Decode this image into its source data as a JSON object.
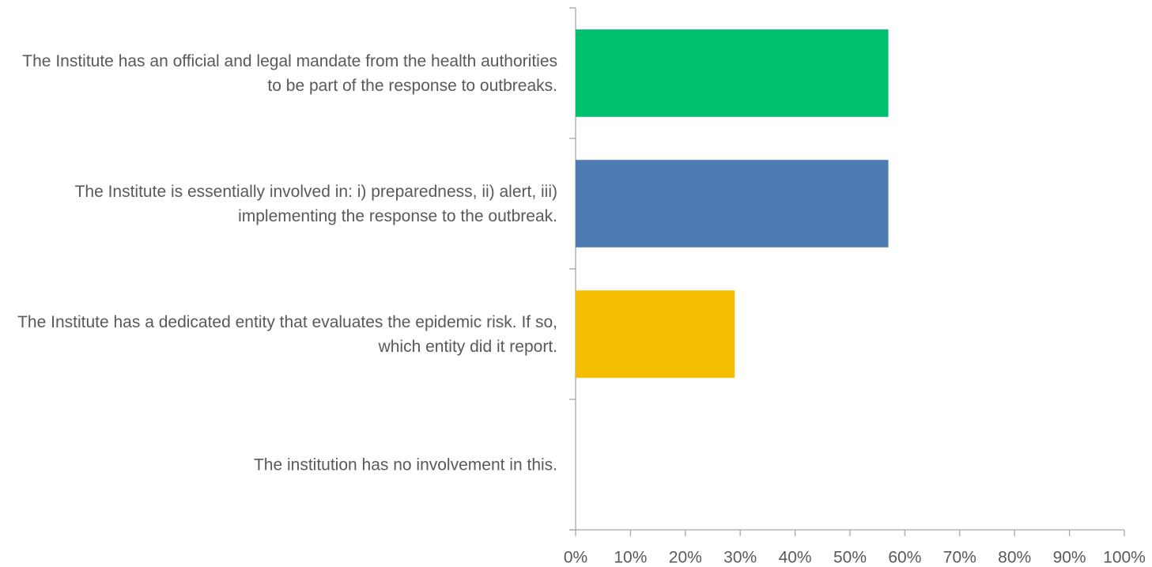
{
  "chart_data": {
    "type": "barh",
    "categories": [
      "The Institute has an official and legal mandate from the health authorities to be part of the response to outbreaks.",
      "The Institute is essentially involved in: i) preparedness, ii) alert, iii) implementing the response to the outbreak.",
      "The Institute has a dedicated entity that evaluates the epidemic risk. If so, which entity did it report.",
      "The institution has no involvement in this."
    ],
    "values": [
      57,
      57,
      29,
      0
    ],
    "colors": [
      "#00bf6f",
      "#4f7bb3",
      "#f5be00",
      "#a5a5a5"
    ],
    "xlim": [
      0,
      100
    ],
    "xticks": [
      {
        "value": 0,
        "label": "0%"
      },
      {
        "value": 10,
        "label": "10%"
      },
      {
        "value": 20,
        "label": "20%"
      },
      {
        "value": 30,
        "label": "30%"
      },
      {
        "value": 40,
        "label": "40%"
      },
      {
        "value": 50,
        "label": "50%"
      },
      {
        "value": 60,
        "label": "60%"
      },
      {
        "value": 70,
        "label": "70%"
      },
      {
        "value": 80,
        "label": "80%"
      },
      {
        "value": 90,
        "label": "90%"
      },
      {
        "value": 100,
        "label": "100%"
      }
    ],
    "grid": false
  }
}
